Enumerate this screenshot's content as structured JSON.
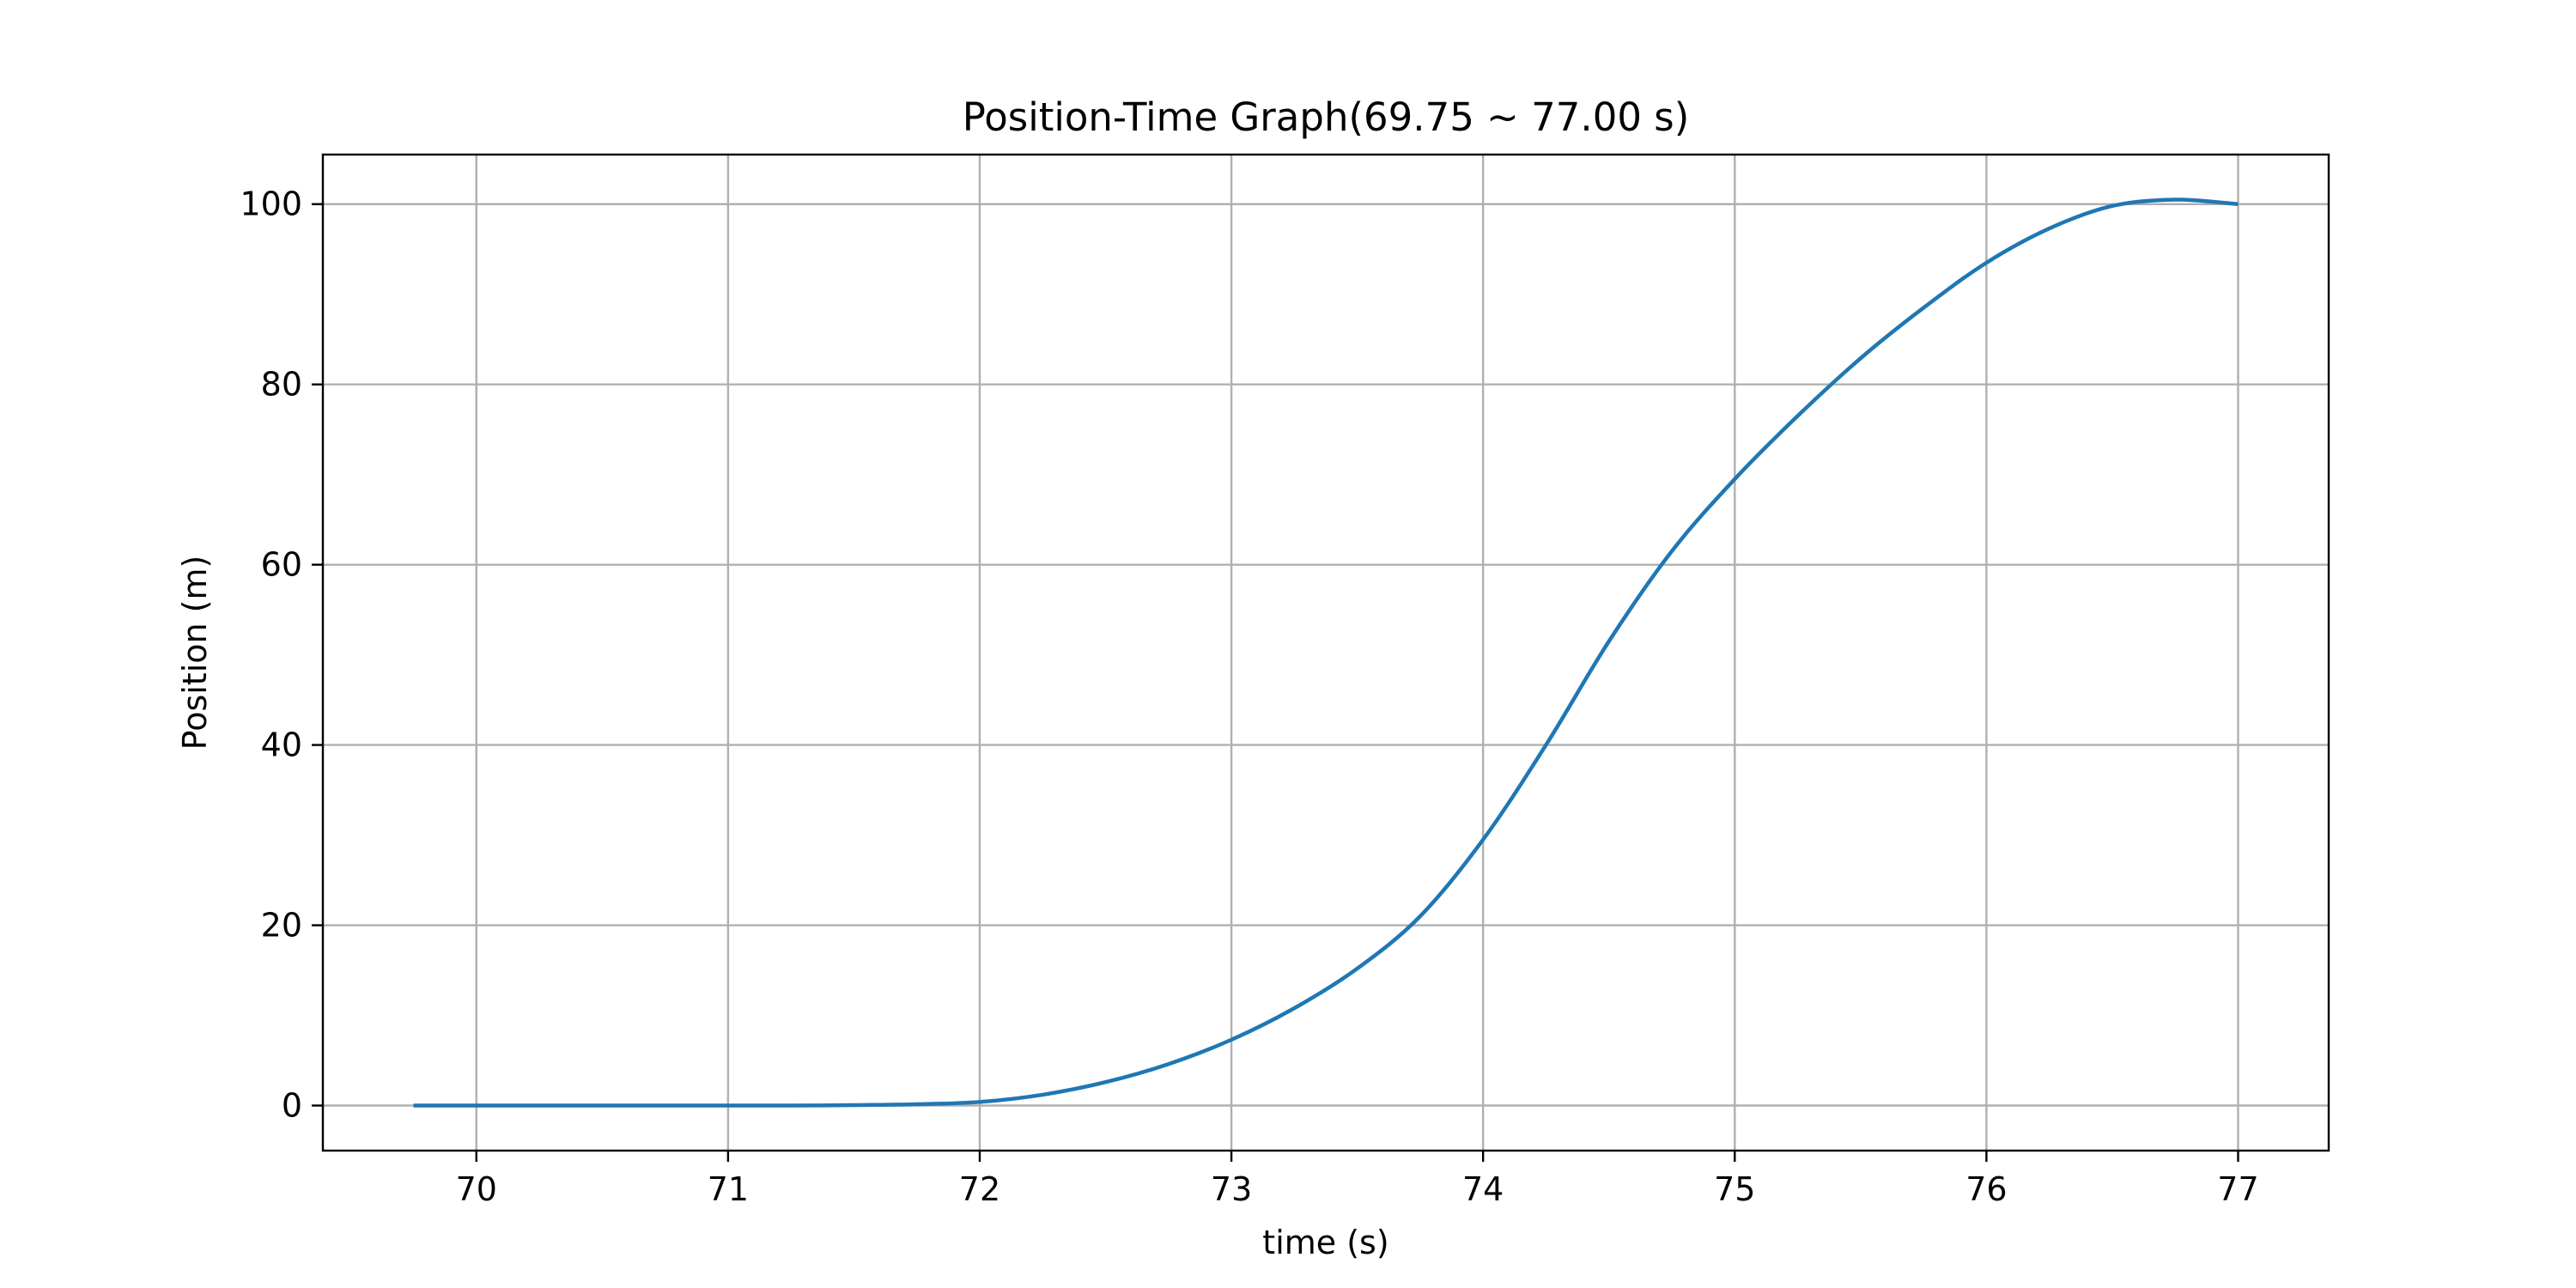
{
  "chart_data": {
    "type": "line",
    "title": "Position-Time Graph(69.75 ~ 77.00 s)",
    "xlabel": "time (s)",
    "ylabel": "Position (m)",
    "xlim": [
      69.39,
      77.36
    ],
    "ylim": [
      -5,
      105.5
    ],
    "xticks": [
      70,
      71,
      72,
      73,
      74,
      75,
      76,
      77
    ],
    "xtick_labels": [
      "70",
      "71",
      "72",
      "73",
      "74",
      "75",
      "76",
      "77"
    ],
    "yticks": [
      0,
      20,
      40,
      60,
      80,
      100
    ],
    "ytick_labels": [
      "0",
      "20",
      "40",
      "60",
      "80",
      "100"
    ],
    "grid": true,
    "legend": "none",
    "series": [
      {
        "color": "#1f77b4",
        "x": [
          69.75,
          70.0,
          70.5,
          71.0,
          71.25,
          71.5,
          71.75,
          72.0,
          72.25,
          72.5,
          72.75,
          73.0,
          73.25,
          73.5,
          73.75,
          74.0,
          74.25,
          74.5,
          74.75,
          75.0,
          75.25,
          75.5,
          75.75,
          76.0,
          76.25,
          76.5,
          76.75,
          77.0
        ],
        "y": [
          0.0,
          0.0,
          0.0,
          0.0,
          0.0,
          0.05,
          0.15,
          0.4,
          1.2,
          2.6,
          4.6,
          7.3,
          10.8,
          15.2,
          21.0,
          29.5,
          40.0,
          51.5,
          61.5,
          69.5,
          76.5,
          82.9,
          88.5,
          93.5,
          97.3,
          99.8,
          100.5,
          100.0
        ]
      }
    ]
  }
}
